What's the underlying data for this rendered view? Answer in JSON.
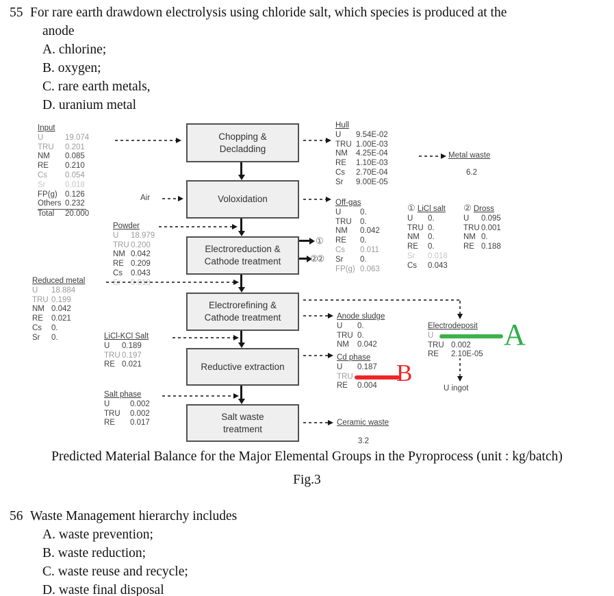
{
  "q55": {
    "number": "55",
    "stem_line1": "For rare earth drawdown electrolysis using chloride salt, which species is produced at the",
    "stem_line2": "anode",
    "options": [
      "A. chlorine;",
      "B. oxygen;",
      "C. rare earth metals,",
      "D. uranium metal"
    ]
  },
  "q56": {
    "number": "56",
    "stem": "Waste Management hierarchy includes",
    "options": [
      "A. waste prevention;",
      "B. waste reduction;",
      "C. waste reuse and recycle;",
      "D. waste final disposal"
    ]
  },
  "caption": "Predicted Material Balance for the Major Elemental Groups in the Pyroprocess (unit : kg/batch)",
  "figure_label": "Fig.3",
  "diagram": {
    "boxes": {
      "chopping": "Chopping &\nDecladding",
      "voloxidation": "Voloxidation",
      "electroreduction": "Electroreduction &\nCathode treatment",
      "electrorefining": "Electrorefining &\nCathode treatment",
      "reductive_extraction": "Reductive extraction",
      "salt_waste": "Salt waste\ntreatment"
    },
    "air_label": "Air",
    "u_ingot_label": "U ingot",
    "markers": {
      "one": "①",
      "two_pair": "②②"
    },
    "annotations": {
      "a_letter": "A",
      "b_letter": "B"
    },
    "colors": {
      "green": "#3cb24a",
      "red": "#ee2626",
      "box_fill": "#efefef",
      "box_border": "#4f4f4f"
    },
    "streams": {
      "input": {
        "title": "Input",
        "rows": [
          {
            "label": "U",
            "value": "19.074",
            "tone": "g"
          },
          {
            "label": "TRU",
            "value": "0.201",
            "tone": "g"
          },
          {
            "label": "NM",
            "value": "0.085"
          },
          {
            "label": "RE",
            "value": "0.210"
          },
          {
            "label": "Cs",
            "value": "0.054",
            "tone": "g"
          },
          {
            "label": "Sr",
            "value": "0.018",
            "tone": "lg"
          },
          {
            "label": "FP(g)",
            "value": "0.126"
          },
          {
            "label": "Others",
            "value": "0.232",
            "underline": true
          },
          {
            "label": "Total",
            "value": "20.000"
          }
        ]
      },
      "powder": {
        "title": "Powder",
        "rows": [
          {
            "label": "U",
            "value": "18.979",
            "tone": "g"
          },
          {
            "label": "TRU",
            "value": "0.200",
            "tone": "g"
          },
          {
            "label": "NM",
            "value": "0.042"
          },
          {
            "label": "RE",
            "value": "0.209"
          },
          {
            "label": "Cs",
            "value": "0.043"
          },
          {
            "label": "Sr",
            "value": "0.018",
            "tone": "lg"
          }
        ]
      },
      "reduced_metal": {
        "title": "Reduced metal",
        "rows": [
          {
            "label": "U",
            "value": "18.884",
            "tone": "g"
          },
          {
            "label": "TRU",
            "value": "0.199",
            "tone": "g"
          },
          {
            "label": "NM",
            "value": "0.042"
          },
          {
            "label": "RE",
            "value": "0.021"
          },
          {
            "label": "Cs",
            "value": "0."
          },
          {
            "label": "Sr",
            "value": "0."
          }
        ]
      },
      "licl_kcl_salt": {
        "title": "LiCl-KCl Salt",
        "rows": [
          {
            "label": "U",
            "value": "0.189"
          },
          {
            "label": "TRU",
            "value": "0.197",
            "tone": "g"
          },
          {
            "label": "RE",
            "value": "0.021"
          }
        ]
      },
      "salt_phase": {
        "title": "Salt phase",
        "rows": [
          {
            "label": "U",
            "value": "0.002"
          },
          {
            "label": "TRU",
            "value": "0.002"
          },
          {
            "label": "RE",
            "value": "0.017"
          }
        ]
      },
      "hull": {
        "title": "Hull",
        "rows": [
          {
            "label": "U",
            "value": "9.54E-02"
          },
          {
            "label": "TRU",
            "value": "1.00E-03"
          },
          {
            "label": "NM",
            "value": "4.25E-04"
          },
          {
            "label": "RE",
            "value": "1.10E-03"
          },
          {
            "label": "Cs",
            "value": "2.70E-04"
          },
          {
            "label": "Sr",
            "value": "9.00E-05"
          }
        ]
      },
      "metal_waste": {
        "title": "Metal waste",
        "value": "6.2"
      },
      "off_gas": {
        "title": "Off-gas",
        "rows": [
          {
            "label": "U",
            "value": "0."
          },
          {
            "label": "TRU",
            "value": "0."
          },
          {
            "label": "NM",
            "value": "0.042"
          },
          {
            "label": "RE",
            "value": "0."
          },
          {
            "label": "Cs",
            "value": "0.011",
            "tone": "g"
          },
          {
            "label": "Sr",
            "value": "0."
          },
          {
            "label": "FP(g)",
            "value": "0.063",
            "tone": "g"
          }
        ]
      },
      "licl_salt": {
        "marker": "①",
        "title": "LiCl salt",
        "rows": [
          {
            "label": "U",
            "value": "0."
          },
          {
            "label": "TRU",
            "value": "0."
          },
          {
            "label": "NM",
            "value": "0."
          },
          {
            "label": "RE",
            "value": "0."
          },
          {
            "label": "Sr",
            "value": "0.018",
            "tone": "lg"
          },
          {
            "label": "Cs",
            "value": "0.043"
          }
        ]
      },
      "dross": {
        "marker": "②",
        "title": "Dross",
        "rows": [
          {
            "label": "U",
            "value": "0.095"
          },
          {
            "label": "TRU",
            "value": "0.001"
          },
          {
            "label": "NM",
            "value": "0."
          },
          {
            "label": "RE",
            "value": "0.188"
          }
        ]
      },
      "anode_sludge": {
        "title": "Anode sludge",
        "rows": [
          {
            "label": "U",
            "value": "0."
          },
          {
            "label": "TRU",
            "value": "0."
          },
          {
            "label": "NM",
            "value": "0.042"
          }
        ]
      },
      "electrodeposit": {
        "title": "Electrodeposit",
        "rows": [
          {
            "label": "U",
            "tone": "g",
            "mark": "green-line"
          },
          {
            "label": "TRU",
            "value": "0.002"
          },
          {
            "label": "RE",
            "value": "2.10E-05"
          }
        ]
      },
      "cd_phase": {
        "title": "Cd phase",
        "rows": [
          {
            "label": "U",
            "value": "0.187"
          },
          {
            "label": "TRU",
            "tone": "g",
            "mark": "red-line"
          },
          {
            "label": "RE",
            "value": "0.004"
          }
        ]
      },
      "ceramic_waste": {
        "title": "Ceramic waste",
        "value": "3.2"
      }
    }
  }
}
